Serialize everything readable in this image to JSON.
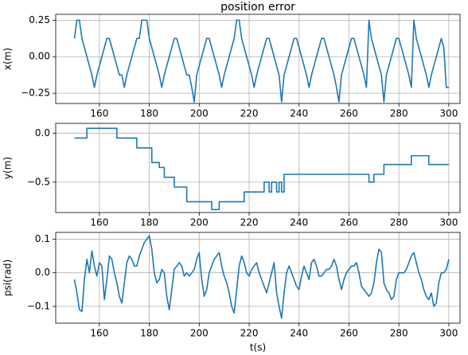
{
  "chart_data": [
    {
      "type": "line",
      "title": "position error",
      "y_label": "x(m)",
      "color": "#1f77b4",
      "grid": true,
      "xlim": [
        142.5,
        304.5
      ],
      "ylim": [
        -0.32,
        0.29
      ],
      "xticks": [
        160,
        180,
        200,
        220,
        240,
        260,
        280,
        300
      ],
      "yticks": [
        {
          "value": 0.25,
          "label": "0.25"
        },
        {
          "value": 0,
          "label": "0.00"
        },
        {
          "value": -0.25,
          "label": "−0.25"
        }
      ],
      "x": [
        150,
        151,
        152,
        153,
        154,
        155,
        156,
        157,
        158,
        159,
        160,
        161,
        162,
        163,
        164,
        165,
        166,
        167,
        168,
        169,
        170,
        171,
        172,
        173,
        174,
        175,
        176,
        177,
        178,
        179,
        180,
        181,
        182,
        183,
        184,
        185,
        186,
        187,
        188,
        189,
        190,
        191,
        192,
        193,
        194,
        195,
        196,
        197,
        198,
        199,
        200,
        201,
        202,
        203,
        204,
        205,
        206,
        207,
        208,
        209,
        210,
        211,
        212,
        213,
        214,
        215,
        216,
        217,
        218,
        219,
        220,
        221,
        222,
        223,
        224,
        225,
        226,
        227,
        228,
        229,
        230,
        231,
        232,
        233,
        234,
        235,
        236,
        237,
        238,
        239,
        240,
        241,
        242,
        243,
        244,
        245,
        246,
        247,
        248,
        249,
        250,
        251,
        252,
        253,
        254,
        255,
        256,
        257,
        258,
        259,
        260,
        261,
        262,
        263,
        264,
        265,
        266,
        267,
        268,
        269,
        270,
        271,
        272,
        273,
        274,
        275,
        276,
        277,
        278,
        279,
        280,
        281,
        282,
        283,
        284,
        285,
        286,
        287,
        288,
        289,
        290,
        291,
        292,
        293,
        294,
        295,
        296,
        297,
        298,
        299,
        300
      ],
      "values": [
        0.125,
        0.25,
        0.25,
        0.125,
        0.0625,
        0,
        -0.0625,
        -0.125,
        -0.21,
        -0.125,
        -0.0625,
        0,
        0.0625,
        0.125,
        0.125,
        0.0625,
        0,
        -0.0625,
        -0.125,
        -0.125,
        -0.21,
        -0.125,
        -0.0625,
        0,
        0.0625,
        0.125,
        0.125,
        0.25,
        0.25,
        0.25,
        0.125,
        0.0625,
        0,
        -0.0625,
        -0.125,
        -0.21,
        -0.125,
        -0.0625,
        0,
        0.0625,
        0.125,
        0.125,
        0.0625,
        0,
        -0.0625,
        -0.125,
        -0.125,
        -0.21,
        -0.31,
        -0.125,
        -0.0625,
        0,
        0.0625,
        0.125,
        0.125,
        0.0625,
        0,
        -0.0625,
        -0.125,
        -0.21,
        -0.125,
        -0.0625,
        0,
        0.0625,
        0.125,
        0.25,
        0.25,
        0.125,
        0.0625,
        0,
        -0.0625,
        -0.125,
        -0.21,
        -0.125,
        -0.0625,
        0,
        0.0625,
        0.125,
        0.125,
        0.0625,
        0,
        -0.0625,
        -0.125,
        -0.31,
        -0.125,
        -0.0625,
        0,
        0.0625,
        0.125,
        0.125,
        0.0625,
        0,
        -0.0625,
        -0.125,
        -0.21,
        -0.125,
        -0.0625,
        0,
        0.0625,
        0.125,
        0.125,
        0.0625,
        0,
        -0.0625,
        -0.125,
        -0.21,
        -0.31,
        -0.125,
        -0.0625,
        0,
        0.0625,
        0.125,
        0.125,
        0.0625,
        0,
        -0.0625,
        -0.125,
        -0.21,
        0.25,
        0.125,
        0.0625,
        0,
        -0.0625,
        -0.125,
        -0.31,
        -0.125,
        -0.0625,
        0,
        0.0625,
        0.125,
        0.125,
        0.0625,
        0,
        -0.0625,
        -0.125,
        -0.21,
        0.25,
        0.125,
        0.0625,
        0,
        -0.0625,
        -0.125,
        -0.21,
        -0.125,
        -0.0625,
        0,
        0.0625,
        0.125,
        0.0625,
        -0.21,
        -0.21
      ]
    },
    {
      "type": "line",
      "y_label": "y(m)",
      "color": "#1f77b4",
      "grid": true,
      "xlim": [
        142.5,
        304.5
      ],
      "ylim": [
        -0.81,
        0.1
      ],
      "xticks": [
        160,
        180,
        200,
        220,
        240,
        260,
        280,
        300
      ],
      "yticks": [
        {
          "value": 0,
          "label": "0.0"
        },
        {
          "value": -0.5,
          "label": "−0.5"
        }
      ],
      "x": [
        150,
        155,
        155,
        167,
        167,
        175,
        175,
        181,
        181,
        184,
        184,
        186,
        186,
        190,
        190,
        195,
        195,
        205,
        205,
        208,
        208,
        218,
        218,
        226,
        226,
        228,
        228,
        229,
        229,
        231,
        231,
        232,
        232,
        233,
        233,
        234,
        234,
        268,
        268,
        270,
        270,
        274,
        274,
        285,
        285,
        292,
        292,
        300
      ],
      "values": [
        -0.05,
        -0.05,
        0.05,
        0.05,
        -0.05,
        -0.05,
        -0.15,
        -0.15,
        -0.3,
        -0.3,
        -0.35,
        -0.35,
        -0.45,
        -0.45,
        -0.55,
        -0.55,
        -0.7,
        -0.7,
        -0.78,
        -0.78,
        -0.7,
        -0.7,
        -0.6,
        -0.6,
        -0.5,
        -0.5,
        -0.6,
        -0.6,
        -0.5,
        -0.5,
        -0.6,
        -0.6,
        -0.5,
        -0.5,
        -0.6,
        -0.6,
        -0.42,
        -0.42,
        -0.5,
        -0.5,
        -0.42,
        -0.42,
        -0.32,
        -0.32,
        -0.23,
        -0.23,
        -0.32,
        -0.32
      ]
    },
    {
      "type": "line",
      "x_label": "t(s)",
      "y_label": "psi(rad)",
      "color": "#1f77b4",
      "grid": true,
      "xlim": [
        142.5,
        304.5
      ],
      "ylim": [
        -0.15,
        0.12
      ],
      "xticks": [
        160,
        180,
        200,
        220,
        240,
        260,
        280,
        300
      ],
      "yticks": [
        {
          "value": 0.1,
          "label": "0.1"
        },
        {
          "value": 0,
          "label": "0.0"
        },
        {
          "value": -0.1,
          "label": "−0.1"
        }
      ],
      "x": [
        150,
        151,
        152,
        153,
        154,
        155,
        156,
        157,
        158,
        159,
        160,
        161,
        162,
        163,
        164,
        165,
        166,
        167,
        168,
        169,
        170,
        171,
        172,
        173,
        174,
        175,
        176,
        177,
        178,
        179,
        180,
        181,
        182,
        183,
        184,
        185,
        186,
        187,
        188,
        189,
        190,
        191,
        192,
        193,
        194,
        195,
        196,
        197,
        198,
        199,
        200,
        201,
        202,
        203,
        204,
        205,
        206,
        207,
        208,
        209,
        210,
        211,
        212,
        213,
        214,
        215,
        216,
        217,
        218,
        219,
        220,
        221,
        222,
        223,
        224,
        225,
        226,
        227,
        228,
        229,
        230,
        231,
        232,
        233,
        234,
        235,
        236,
        237,
        238,
        239,
        240,
        241,
        242,
        243,
        244,
        245,
        246,
        247,
        248,
        249,
        250,
        251,
        252,
        253,
        254,
        255,
        256,
        257,
        258,
        259,
        260,
        261,
        262,
        263,
        264,
        265,
        266,
        267,
        268,
        269,
        270,
        271,
        272,
        273,
        274,
        275,
        276,
        277,
        278,
        279,
        280,
        281,
        282,
        283,
        284,
        285,
        286,
        287,
        288,
        289,
        290,
        291,
        292,
        293,
        294,
        295,
        296,
        297,
        298,
        299,
        300
      ],
      "values": [
        -0.02,
        -0.06,
        -0.11,
        -0.115,
        -0.02,
        0.04,
        0.0,
        0.065,
        0.02,
        -0.01,
        0.03,
        0.02,
        -0.08,
        -0.02,
        0.05,
        0.04,
        0.0,
        -0.03,
        -0.07,
        -0.09,
        -0.03,
        0.03,
        0.05,
        0.04,
        0.02,
        0.02,
        0.05,
        0.07,
        0.09,
        0.1,
        0.11,
        0.07,
        0.0,
        -0.03,
        -0.02,
        0.01,
        0.0,
        -0.07,
        -0.11,
        -0.05,
        0.01,
        0.02,
        0.03,
        0.02,
        -0.01,
        0.0,
        -0.01,
        0.0,
        0.01,
        0.04,
        0.06,
        -0.02,
        -0.07,
        -0.05,
        0.0,
        0.02,
        0.04,
        0.05,
        0.06,
        0.02,
        -0.01,
        -0.03,
        -0.06,
        -0.1,
        -0.12,
        -0.05,
        0.02,
        0.05,
        0.03,
        0.0,
        -0.01,
        0.01,
        0.02,
        0.03,
        0.0,
        -0.02,
        -0.04,
        -0.06,
        -0.03,
        0.0,
        0.03,
        -0.06,
        -0.1,
        -0.135,
        -0.06,
        0.0,
        0.02,
        0.0,
        -0.02,
        -0.04,
        -0.05,
        -0.01,
        0.02,
        0.0,
        -0.02,
        0.03,
        0.04,
        0.02,
        -0.01,
        -0.01,
        0.0,
        0.01,
        0.01,
        0.02,
        0.04,
        0.02,
        -0.02,
        -0.05,
        -0.02,
        0.0,
        0.01,
        0.02,
        0.02,
        0.03,
        0.0,
        -0.04,
        -0.05,
        -0.06,
        -0.07,
        -0.06,
        -0.03,
        0.03,
        0.07,
        0.06,
        -0.03,
        -0.05,
        -0.06,
        -0.08,
        -0.07,
        -0.02,
        0.0,
        0.0,
        0.0,
        0.01,
        0.03,
        0.05,
        0.06,
        0.03,
        0.0,
        -0.02,
        -0.05,
        -0.07,
        -0.08,
        -0.06,
        -0.1,
        -0.09,
        -0.03,
        0.0,
        0.0,
        0.01,
        0.04
      ]
    }
  ]
}
